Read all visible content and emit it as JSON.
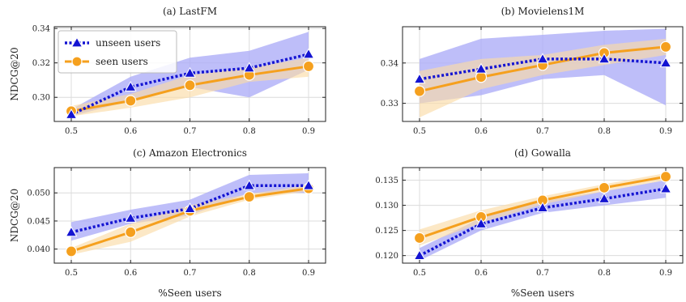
{
  "chart_data": [
    {
      "type": "line",
      "title": "(a) LastFM",
      "xlabel": "",
      "ylabel": "NDCG@20",
      "x": [
        0.5,
        0.6,
        0.7,
        0.8,
        0.9
      ],
      "xticks": [
        "0.5",
        "0.6",
        "0.7",
        "0.8",
        "0.9"
      ],
      "ylim": [
        0.286,
        0.341
      ],
      "yticks": [
        0.3,
        0.32,
        0.34
      ],
      "ytick_labels": [
        "0.30",
        "0.32",
        "0.34"
      ],
      "grid": true,
      "legend": "top-left",
      "series": [
        {
          "name": "unseen users",
          "values": [
            0.29,
            0.306,
            0.314,
            0.317,
            0.325
          ],
          "band_low": [
            0.289,
            0.298,
            0.306,
            0.3,
            0.316
          ],
          "band_high": [
            0.293,
            0.312,
            0.323,
            0.327,
            0.338
          ]
        },
        {
          "name": "seen users",
          "values": [
            0.292,
            0.298,
            0.307,
            0.313,
            0.318
          ],
          "band_low": [
            0.289,
            0.294,
            0.3,
            0.309,
            0.312
          ],
          "band_high": [
            0.295,
            0.302,
            0.313,
            0.317,
            0.323
          ]
        }
      ]
    },
    {
      "type": "line",
      "title": "(b) Movielens1M",
      "xlabel": "",
      "ylabel": "",
      "x": [
        0.5,
        0.6,
        0.7,
        0.8,
        0.9
      ],
      "xticks": [
        "0.5",
        "0.6",
        "0.7",
        "0.8",
        "0.9"
      ],
      "ylim": [
        0.3255,
        0.349
      ],
      "yticks": [
        0.33,
        0.34
      ],
      "ytick_labels": [
        "0.33",
        "0.34"
      ],
      "grid": true,
      "series": [
        {
          "name": "unseen users",
          "values": [
            0.336,
            0.3385,
            0.341,
            0.341,
            0.34
          ],
          "band_low": [
            0.33,
            0.332,
            0.336,
            0.337,
            0.3295
          ],
          "band_high": [
            0.341,
            0.346,
            0.347,
            0.348,
            0.3485
          ]
        },
        {
          "name": "seen users",
          "values": [
            0.333,
            0.3365,
            0.3395,
            0.3425,
            0.344
          ],
          "band_low": [
            0.3265,
            0.3335,
            0.337,
            0.3395,
            0.342
          ],
          "band_high": [
            0.338,
            0.341,
            0.342,
            0.3445,
            0.346
          ]
        }
      ]
    },
    {
      "type": "line",
      "title": "(c) Amazon Electronics",
      "xlabel": "%Seen users",
      "ylabel": "NDCG@20",
      "x": [
        0.5,
        0.6,
        0.7,
        0.8,
        0.9
      ],
      "xticks": [
        "0.5",
        "0.6",
        "0.7",
        "0.8",
        "0.9"
      ],
      "ylim": [
        0.0375,
        0.0545
      ],
      "yticks": [
        0.04,
        0.045,
        0.05
      ],
      "ytick_labels": [
        "0.040",
        "0.045",
        "0.050"
      ],
      "grid": true,
      "series": [
        {
          "name": "unseen users",
          "values": [
            0.043,
            0.0455,
            0.0472,
            0.0513,
            0.0513
          ],
          "band_low": [
            0.0415,
            0.0445,
            0.046,
            0.05,
            0.05
          ],
          "band_high": [
            0.0448,
            0.047,
            0.0488,
            0.0532,
            0.0535
          ]
        },
        {
          "name": "seen users",
          "values": [
            0.0396,
            0.043,
            0.0468,
            0.0493,
            0.0508
          ],
          "band_low": [
            0.039,
            0.0413,
            0.0458,
            0.0488,
            0.0503
          ],
          "band_high": [
            0.0402,
            0.0445,
            0.0478,
            0.0498,
            0.0514
          ]
        }
      ]
    },
    {
      "type": "line",
      "title": "(d) Gowalla",
      "xlabel": "%Seen users",
      "ylabel": "",
      "x": [
        0.5,
        0.6,
        0.7,
        0.8,
        0.9
      ],
      "xticks": [
        "0.5",
        "0.6",
        "0.7",
        "0.8",
        "0.9"
      ],
      "ylim": [
        0.1185,
        0.1375
      ],
      "yticks": [
        0.12,
        0.125,
        0.13,
        0.135
      ],
      "ytick_labels": [
        "0.120",
        "0.125",
        "0.130",
        "0.135"
      ],
      "grid": true,
      "series": [
        {
          "name": "unseen users",
          "values": [
            0.12,
            0.1263,
            0.1295,
            0.1313,
            0.1333
          ],
          "band_low": [
            0.119,
            0.125,
            0.1285,
            0.13,
            0.1315
          ],
          "band_high": [
            0.1215,
            0.1275,
            0.1308,
            0.1328,
            0.135
          ]
        },
        {
          "name": "seen users",
          "values": [
            0.1235,
            0.1277,
            0.131,
            0.1335,
            0.1357
          ],
          "band_low": [
            0.122,
            0.1265,
            0.1302,
            0.1328,
            0.135
          ],
          "band_high": [
            0.1252,
            0.129,
            0.1318,
            0.1342,
            0.1364
          ]
        }
      ]
    }
  ],
  "colors": {
    "unseen_line": "#1414d2",
    "unseen_band": "#aeaef7",
    "seen_line": "#f5a01e",
    "seen_band": "#fbdca8",
    "grid": "#dcdcdc",
    "marker_edge": "#ffffff"
  }
}
